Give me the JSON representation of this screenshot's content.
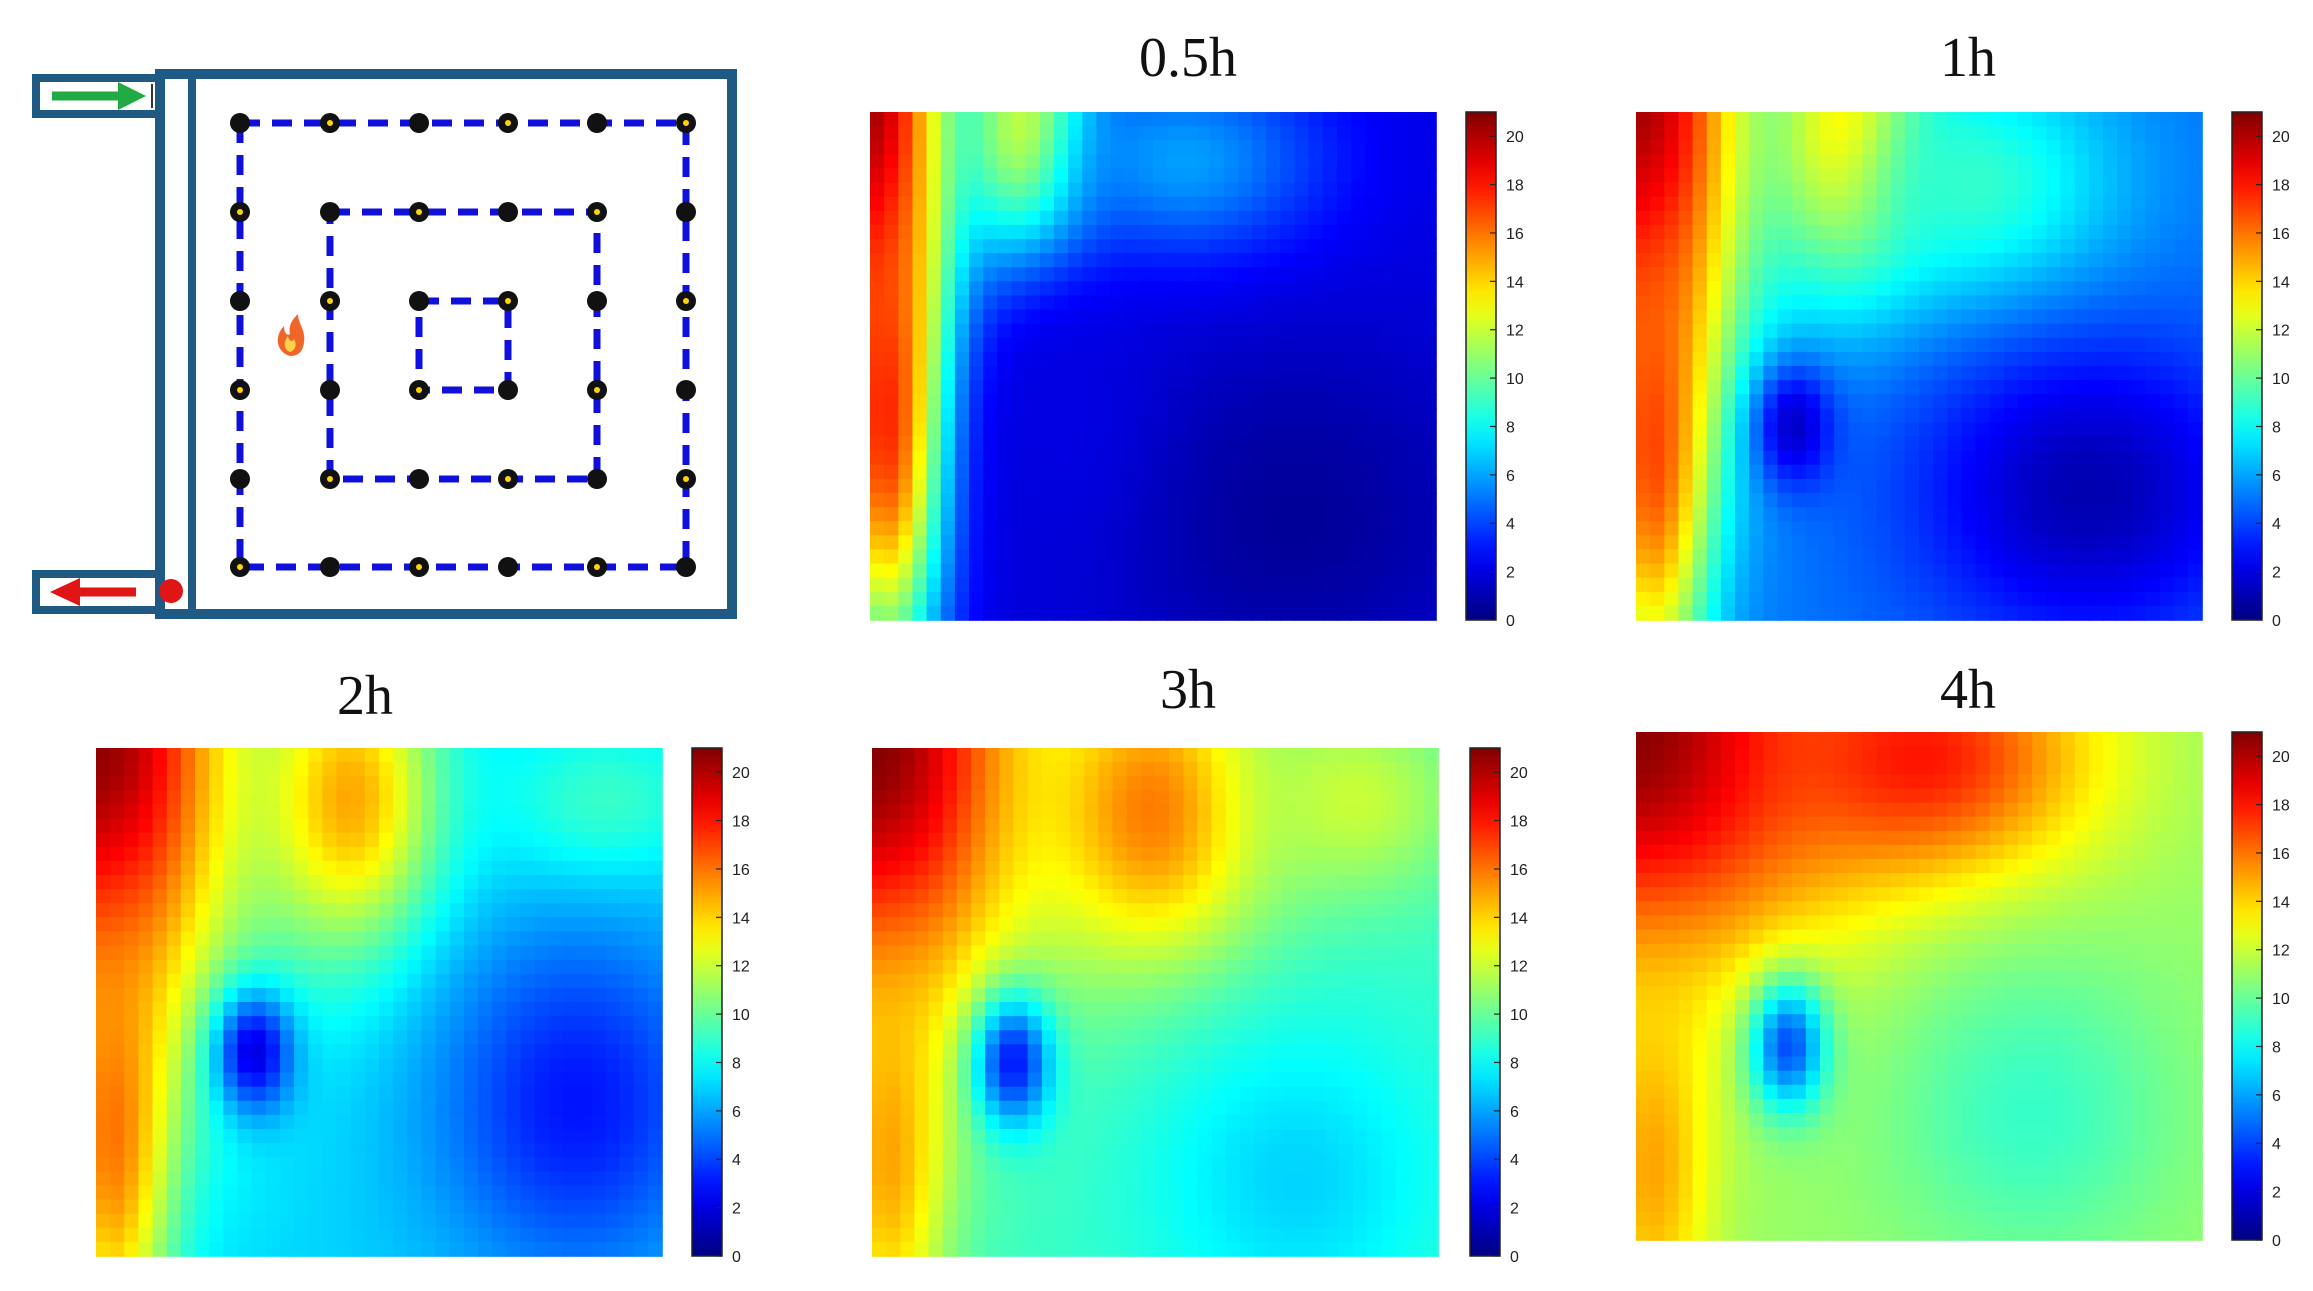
{
  "chart_data": [
    {
      "type": "diagram",
      "name": "sensor-layout",
      "inlet_color": "#22aa44",
      "outlet_color": "#e01515",
      "wall_color": "#1f5a85",
      "loop_color": "#1010dd",
      "loops": [
        {
          "rows": 6,
          "cols": 6
        },
        {
          "rows": 4,
          "cols": 4
        },
        {
          "rows": 2,
          "cols": 2
        }
      ],
      "fire_icon": "fire-icon"
    },
    {
      "type": "heatmap",
      "title": "0.5h",
      "zlim": [
        0,
        20
      ],
      "colorbar_ticks": [
        "0",
        "2",
        "4",
        "6",
        "8",
        "10",
        "12",
        "14",
        "16",
        "18",
        "20"
      ],
      "blobs": [
        {
          "x": 0.0,
          "y": 0.0,
          "v": 21,
          "sx": 0.14,
          "sy": 0.55
        },
        {
          "x": 0.03,
          "y": 0.6,
          "v": 18,
          "sx": 0.1,
          "sy": 0.5
        },
        {
          "x": 0.28,
          "y": 0.05,
          "v": 14,
          "sx": 0.12,
          "sy": 0.25
        },
        {
          "x": 0.55,
          "y": 0.1,
          "v": 6,
          "sx": 0.25,
          "sy": 0.2
        },
        {
          "x": 0.75,
          "y": 0.8,
          "v": 0.5,
          "sx": 0.35,
          "sy": 0.35
        },
        {
          "x": 0.35,
          "y": 0.6,
          "v": 2,
          "sx": 0.15,
          "sy": 0.3
        }
      ],
      "base": 2
    },
    {
      "type": "heatmap",
      "title": "1h",
      "zlim": [
        0,
        20
      ],
      "colorbar_ticks": [
        "0",
        "2",
        "4",
        "6",
        "8",
        "10",
        "12",
        "14",
        "16",
        "18",
        "20"
      ],
      "blobs": [
        {
          "x": 0.0,
          "y": 0.0,
          "v": 21,
          "sx": 0.2,
          "sy": 0.6
        },
        {
          "x": 0.03,
          "y": 0.65,
          "v": 17,
          "sx": 0.1,
          "sy": 0.5
        },
        {
          "x": 0.38,
          "y": 0.05,
          "v": 15,
          "sx": 0.14,
          "sy": 0.28
        },
        {
          "x": 0.6,
          "y": 0.15,
          "v": 9,
          "sx": 0.25,
          "sy": 0.25
        },
        {
          "x": 0.8,
          "y": 0.75,
          "v": 1,
          "sx": 0.3,
          "sy": 0.3
        },
        {
          "x": 0.28,
          "y": 0.62,
          "v": 1.5,
          "sx": 0.07,
          "sy": 0.12
        }
      ],
      "base": 5
    },
    {
      "type": "heatmap",
      "title": "2h",
      "zlim": [
        0,
        20
      ],
      "colorbar_ticks": [
        "0",
        "2",
        "4",
        "6",
        "8",
        "10",
        "12",
        "14",
        "16",
        "18",
        "20"
      ],
      "blobs": [
        {
          "x": 0.0,
          "y": 0.0,
          "v": 21,
          "sx": 0.25,
          "sy": 0.6
        },
        {
          "x": 0.03,
          "y": 0.75,
          "v": 16,
          "sx": 0.1,
          "sy": 0.45
        },
        {
          "x": 0.45,
          "y": 0.1,
          "v": 15,
          "sx": 0.16,
          "sy": 0.3
        },
        {
          "x": 0.85,
          "y": 0.7,
          "v": 3,
          "sx": 0.25,
          "sy": 0.35
        },
        {
          "x": 0.28,
          "y": 0.6,
          "v": 2,
          "sx": 0.07,
          "sy": 0.12
        },
        {
          "x": 0.9,
          "y": 0.1,
          "v": 9,
          "sx": 0.2,
          "sy": 0.15
        }
      ],
      "base": 7
    },
    {
      "type": "heatmap",
      "title": "3h",
      "zlim": [
        0,
        20
      ],
      "colorbar_ticks": [
        "0",
        "2",
        "4",
        "6",
        "8",
        "10",
        "12",
        "14",
        "16",
        "18",
        "20"
      ],
      "blobs": [
        {
          "x": 0.0,
          "y": 0.0,
          "v": 21,
          "sx": 0.27,
          "sy": 0.55
        },
        {
          "x": 0.03,
          "y": 0.8,
          "v": 15,
          "sx": 0.1,
          "sy": 0.4
        },
        {
          "x": 0.5,
          "y": 0.12,
          "v": 16,
          "sx": 0.2,
          "sy": 0.3
        },
        {
          "x": 0.85,
          "y": 0.1,
          "v": 12,
          "sx": 0.2,
          "sy": 0.2
        },
        {
          "x": 0.25,
          "y": 0.62,
          "v": 3,
          "sx": 0.07,
          "sy": 0.13
        },
        {
          "x": 0.75,
          "y": 0.85,
          "v": 7,
          "sx": 0.25,
          "sy": 0.3
        }
      ],
      "base": 9
    },
    {
      "type": "heatmap",
      "title": "4h",
      "zlim": [
        0,
        20
      ],
      "colorbar_ticks": [
        "0",
        "2",
        "4",
        "6",
        "8",
        "10",
        "12",
        "14",
        "16",
        "18",
        "20"
      ],
      "blobs": [
        {
          "x": 0.0,
          "y": 0.0,
          "v": 21,
          "sx": 0.35,
          "sy": 0.45
        },
        {
          "x": 0.5,
          "y": 0.05,
          "v": 18,
          "sx": 0.3,
          "sy": 0.25
        },
        {
          "x": 0.03,
          "y": 0.85,
          "v": 15,
          "sx": 0.1,
          "sy": 0.35
        },
        {
          "x": 0.27,
          "y": 0.62,
          "v": 4,
          "sx": 0.07,
          "sy": 0.13
        },
        {
          "x": 0.7,
          "y": 0.75,
          "v": 9,
          "sx": 0.25,
          "sy": 0.3
        }
      ],
      "base": 11
    }
  ]
}
